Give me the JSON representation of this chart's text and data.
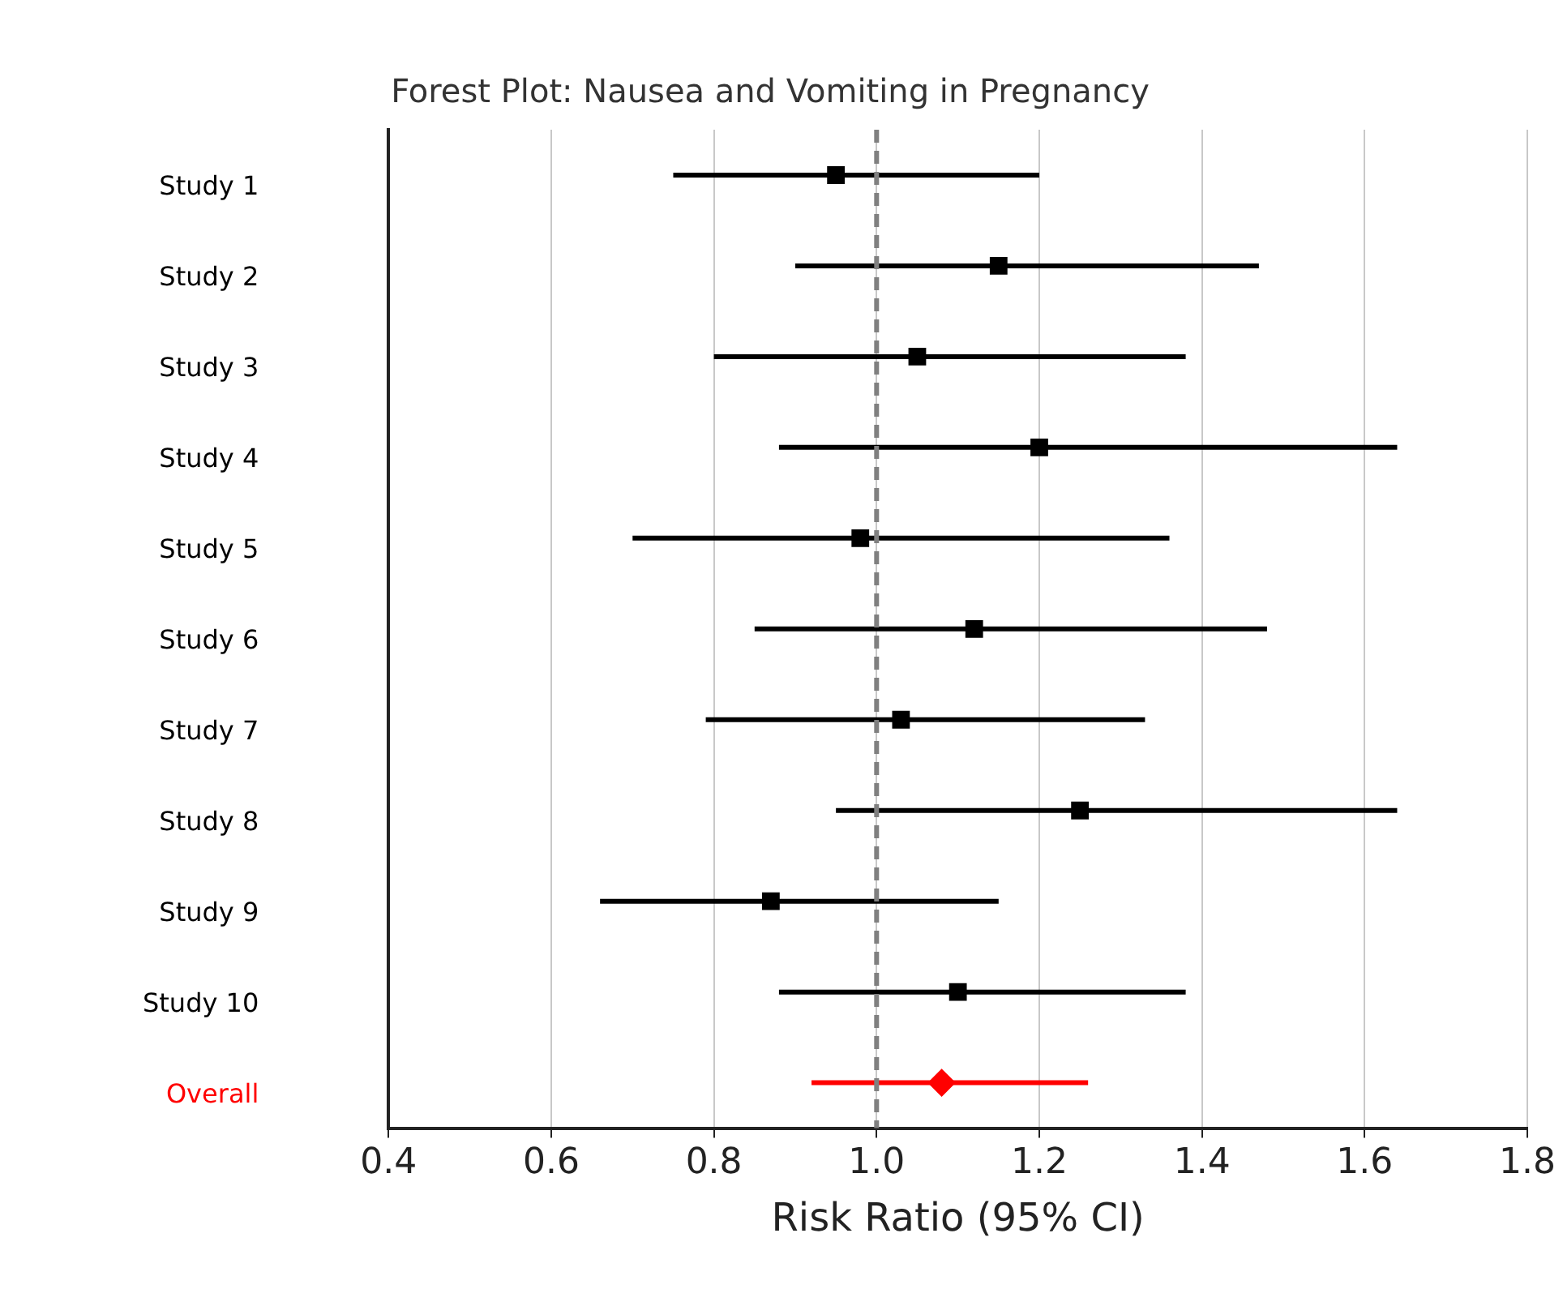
{
  "chart_data": {
    "type": "scatter",
    "orientation": "horizontal",
    "title": "Forest Plot: Nausea and Vomiting in Pregnancy",
    "xlabel": "Risk Ratio (95% CI)",
    "categories": [
      "Study 1",
      "Study 2",
      "Study 3",
      "Study 4",
      "Study 5",
      "Study 6",
      "Study 7",
      "Study 8",
      "Study 9",
      "Study 10",
      "Overall"
    ],
    "series": [
      {
        "color": "#000000",
        "marker": "square",
        "values": [
          0.95,
          1.15,
          1.05,
          1.2,
          0.98,
          1.12,
          1.03,
          1.25,
          0.87,
          1.1,
          null
        ],
        "errors": [
          [
            0.75,
            1.2
          ],
          [
            0.9,
            1.47
          ],
          [
            0.8,
            1.38
          ],
          [
            0.88,
            1.64
          ],
          [
            0.7,
            1.36
          ],
          [
            0.85,
            1.48
          ],
          [
            0.79,
            1.33
          ],
          [
            0.95,
            1.64
          ],
          [
            0.66,
            1.15
          ],
          [
            0.88,
            1.38
          ],
          null
        ]
      },
      {
        "color": "#ff0000",
        "marker": "diamond",
        "values": [
          null,
          null,
          null,
          null,
          null,
          null,
          null,
          null,
          null,
          null,
          1.08
        ],
        "errors": [
          null,
          null,
          null,
          null,
          null,
          null,
          null,
          null,
          null,
          null,
          [
            0.92,
            1.26
          ]
        ]
      }
    ],
    "xlim": [
      0.4,
      1.8
    ],
    "xticks": [
      0.4,
      0.6,
      0.8,
      {
        "value": 1,
        "label": "1.0"
      },
      1.2,
      1.4,
      1.6,
      1.8
    ],
    "ref_lines": [
      {
        "axis": "x",
        "value": 1.0,
        "color": "#808080",
        "line_style": "dashed"
      }
    ],
    "grid": "x",
    "legend": false
  }
}
